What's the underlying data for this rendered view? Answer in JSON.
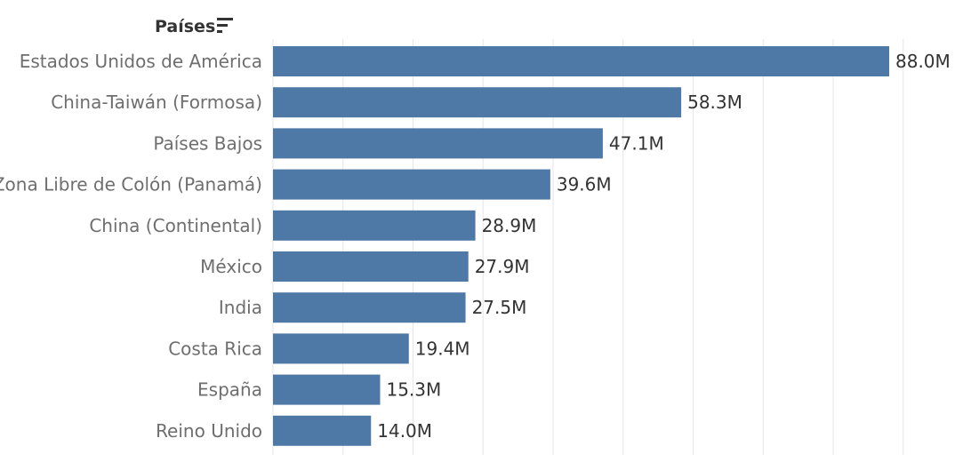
{
  "header": {
    "field_label": "Países",
    "sort_icon": "sort-descending-icon"
  },
  "chart_data": {
    "type": "bar",
    "orientation": "horizontal",
    "categories": [
      "Estados Unidos de América",
      "China-Taiwán (Formosa)",
      "Países Bajos",
      "Zona Libre de Colón (Panamá)",
      "China (Continental)",
      "México",
      "India",
      "Costa Rica",
      "España",
      "Reino Unido"
    ],
    "values": [
      88.0,
      58.3,
      47.1,
      39.6,
      28.9,
      27.9,
      27.5,
      19.4,
      15.3,
      14.0
    ],
    "value_labels": [
      "88.0M",
      "58.3M",
      "47.1M",
      "39.6M",
      "28.9M",
      "27.9M",
      "27.5M",
      "19.4M",
      "15.3M",
      "14.0M"
    ],
    "unit": "M",
    "xlim": [
      0,
      90
    ],
    "grid_step": 10,
    "grid": true,
    "bar_color": "#4e79a7",
    "grid_color": "#e6e6e6",
    "title": "",
    "xlabel": "",
    "ylabel": ""
  }
}
